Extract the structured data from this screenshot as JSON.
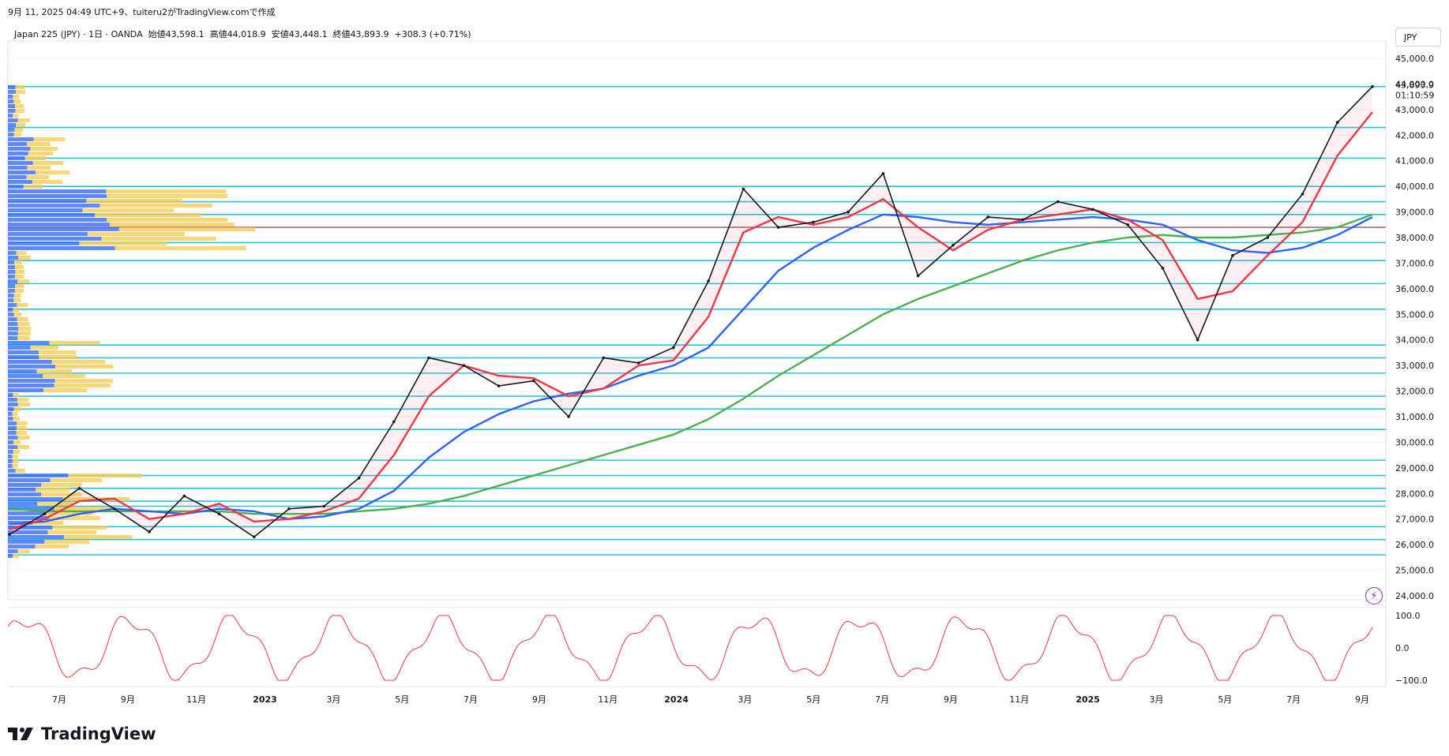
{
  "header": {
    "credit": "9月 11, 2025 04:49 UTC+9、tuiteru2がTradingView.comで作成",
    "symbol_line": "Japan 225 (JPY) · 1日 · OANDA",
    "open_label": "始値",
    "open": "43,598.1",
    "high_label": "高値",
    "high": "44,018.9",
    "low_label": "安値",
    "low": "43,448.1",
    "close_label": "終値",
    "close": "43,893.9",
    "change": "+308.3 (+0.71%)",
    "currency": "JPY"
  },
  "price_scale": {
    "ticks": [
      "45,000.0",
      "44,000.0",
      "43,000.0",
      "42,000.0",
      "41,000.0",
      "40,000.0",
      "39,000.0",
      "38,000.0",
      "37,000.0",
      "36,000.0",
      "35,000.0",
      "34,000.0",
      "33,000.0",
      "32,000.0",
      "31,000.0",
      "30,000.0",
      "29,000.0",
      "28,000.0",
      "27,000.0",
      "26,000.0",
      "25,000.0",
      "24,000.0"
    ],
    "last_price_label": "43,893.9",
    "countdown": "01:10:59"
  },
  "oscillator_scale": {
    "ticks": [
      "100.0",
      "0.0",
      "−100.0"
    ]
  },
  "time_axis": {
    "labels": [
      "7月",
      "9月",
      "11月",
      "2023",
      "3月",
      "5月",
      "7月",
      "9月",
      "11月",
      "2024",
      "3月",
      "5月",
      "7月",
      "9月",
      "11月",
      "2025",
      "3月",
      "5月",
      "7月",
      "9月"
    ],
    "bold": [
      "2023",
      "2024",
      "2025"
    ]
  },
  "brand": {
    "name": "TradingView"
  },
  "colors": {
    "price": "#131722",
    "ma_fast": "#f23645",
    "ma_mid": "#2962ff",
    "ma_slow": "#4caf50",
    "hlines": "#26c6da",
    "vp_blue": "#2962ff",
    "vp_yellow": "#f7c948",
    "oscillator": "#f23645",
    "poc": "#f23645"
  },
  "chart_data": {
    "type": "line",
    "title": "Japan 225 (JPY) · 1日 · OANDA",
    "x": [
      "2022-06",
      "2022-07",
      "2022-08",
      "2022-09",
      "2022-10",
      "2022-11",
      "2022-12",
      "2023-01",
      "2023-02",
      "2023-03",
      "2023-04",
      "2023-05",
      "2023-06",
      "2023-07",
      "2023-08",
      "2023-09",
      "2023-10",
      "2023-11",
      "2023-12",
      "2024-01",
      "2024-02",
      "2024-03",
      "2024-04",
      "2024-05",
      "2024-06",
      "2024-07",
      "2024-08",
      "2024-09",
      "2024-10",
      "2024-11",
      "2024-12",
      "2025-01",
      "2025-02",
      "2025-03",
      "2025-04",
      "2025-05",
      "2025-06",
      "2025-07",
      "2025-08",
      "2025-09"
    ],
    "series": [
      {
        "name": "",
        "values": [
          26400,
          27200,
          28200,
          27400,
          26500,
          27900,
          27200,
          26300,
          27400,
          27500,
          28600,
          30800,
          33300,
          33000,
          32200,
          32400,
          31000,
          33300,
          33100,
          33700,
          36300,
          39900,
          38400,
          38600,
          39000,
          40500,
          36500,
          37700,
          38800,
          38700,
          39400,
          39100,
          38500,
          36800,
          34000,
          37300,
          38000,
          39700,
          42500,
          43900
        ]
      },
      {
        "name": "",
        "values": [
          26600,
          27000,
          27700,
          27800,
          27000,
          27200,
          27600,
          26900,
          27000,
          27300,
          27800,
          29500,
          31800,
          33000,
          32600,
          32500,
          31800,
          32100,
          33000,
          33200,
          34900,
          38200,
          38800,
          38500,
          38800,
          39500,
          38400,
          37500,
          38300,
          38700,
          38900,
          39100,
          38700,
          37900,
          35600,
          35900,
          37300,
          38600,
          41200,
          42900
        ]
      },
      {
        "name": "",
        "values": [
          26800,
          26900,
          27200,
          27400,
          27300,
          27200,
          27400,
          27300,
          27000,
          27100,
          27400,
          28100,
          29400,
          30400,
          31100,
          31600,
          31900,
          32100,
          32600,
          33000,
          33700,
          35200,
          36700,
          37600,
          38300,
          38900,
          38800,
          38600,
          38500,
          38600,
          38700,
          38800,
          38700,
          38500,
          37900,
          37500,
          37400,
          37600,
          38100,
          38800
        ]
      },
      {
        "name": "",
        "values": [
          27400,
          27300,
          27300,
          27300,
          27300,
          27300,
          27300,
          27200,
          27200,
          27200,
          27300,
          27400,
          27600,
          27900,
          28300,
          28700,
          29100,
          29500,
          29900,
          30300,
          30900,
          31700,
          32600,
          33400,
          34200,
          35000,
          35600,
          36100,
          36600,
          37100,
          37500,
          37800,
          38000,
          38100,
          38000,
          38000,
          38100,
          38200,
          38400,
          38900
        ]
      }
    ],
    "horizontal_levels": [
      25600,
      26200,
      26700,
      27500,
      27700,
      28200,
      28700,
      29300,
      30500,
      31300,
      31800,
      32700,
      33300,
      33800,
      35200,
      36200,
      37100,
      37800,
      38400,
      38900,
      39400,
      40000,
      41100,
      42300,
      43900
    ],
    "oscillator": {
      "range": [
        -100,
        100
      ],
      "center": 0
    },
    "ylim": [
      24000,
      45500
    ],
    "grid": true
  }
}
